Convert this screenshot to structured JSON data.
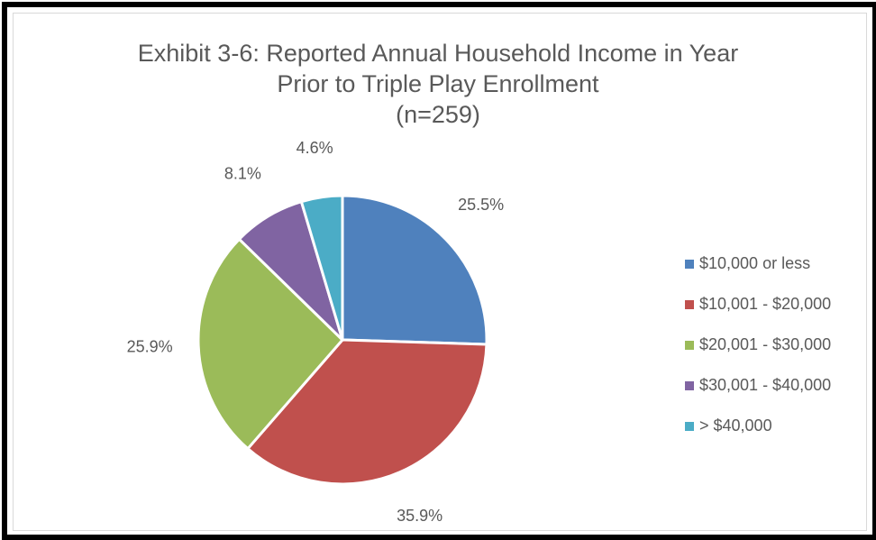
{
  "chart_data": {
    "type": "pie",
    "title_lines": [
      "Exhibit 3-6: Reported Annual Household Income in Year",
      "Prior to Triple Play Enrollment",
      "(n=259)"
    ],
    "slices": [
      {
        "label": "$10,000 or less",
        "value": 25.5,
        "data_label": "25.5%",
        "color": "#4f81bd"
      },
      {
        "label": "$10,001 - $20,000",
        "value": 35.9,
        "data_label": "35.9%",
        "color": "#c0504d"
      },
      {
        "label": "$20,001 - $30,000",
        "value": 25.9,
        "data_label": "25.9%",
        "color": "#9bbb59"
      },
      {
        "label": "$30,001 - $40,000",
        "value": 8.1,
        "data_label": "8.1%",
        "color": "#8064a2"
      },
      {
        "label": "> $40,000",
        "value": 4.6,
        "data_label": "4.6%",
        "color": "#4bacc6"
      }
    ],
    "legend_position": "right",
    "label_color": "#595959"
  }
}
